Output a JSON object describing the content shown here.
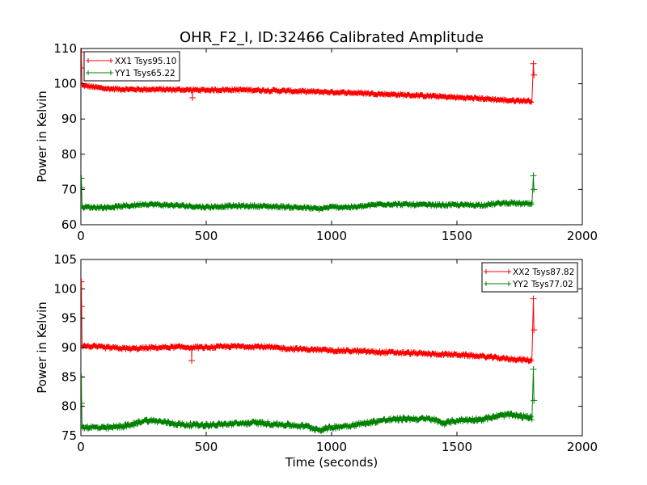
{
  "title": "OHR_F2_I, ID:32466 Calibrated Amplitude",
  "chart_data": [
    {
      "type": "line",
      "ylabel": "Power in Kelvin",
      "xlabel": "",
      "xlim": [
        0,
        2000
      ],
      "ylim": [
        60,
        110
      ],
      "xticks": [
        "0",
        "500",
        "1000",
        "1500",
        "2000"
      ],
      "yticks": [
        "60",
        "70",
        "80",
        "90",
        "100",
        "110"
      ],
      "grid": false,
      "legend_position": "upper-left",
      "series": [
        {
          "name": "XX1 Tsys95.10",
          "color": "#ff0000",
          "marker": "plus",
          "base": [
            [
              5,
              99.5
            ],
            [
              100,
              98.6
            ],
            [
              200,
              98.4
            ],
            [
              300,
              98.4
            ],
            [
              400,
              98.3
            ],
            [
              500,
              98.2
            ],
            [
              600,
              98.3
            ],
            [
              700,
              98.2
            ],
            [
              800,
              98.0
            ],
            [
              900,
              97.8
            ],
            [
              1000,
              97.6
            ],
            [
              1100,
              97.4
            ],
            [
              1200,
              97.1
            ],
            [
              1300,
              96.8
            ],
            [
              1400,
              96.5
            ],
            [
              1500,
              96.1
            ],
            [
              1600,
              95.8
            ],
            [
              1700,
              95.3
            ],
            [
              1800,
              95.1
            ]
          ],
          "noise": 0.35,
          "spikes": [
            [
              2,
              109.0
            ],
            [
              3,
              104.5
            ],
            [
              445,
              96.0
            ],
            [
              1805,
              105.7
            ],
            [
              1807,
              102.5
            ]
          ]
        },
        {
          "name": "YY1 Tsys65.22",
          "color": "#008000",
          "marker": "plus",
          "base": [
            [
              5,
              65.0
            ],
            [
              100,
              64.9
            ],
            [
              200,
              65.4
            ],
            [
              250,
              65.9
            ],
            [
              300,
              65.7
            ],
            [
              400,
              65.4
            ],
            [
              500,
              65.0
            ],
            [
              600,
              65.3
            ],
            [
              700,
              65.3
            ],
            [
              800,
              65.1
            ],
            [
              900,
              64.8
            ],
            [
              950,
              64.5
            ],
            [
              1000,
              65.0
            ],
            [
              1100,
              65.0
            ],
            [
              1200,
              65.9
            ],
            [
              1300,
              65.7
            ],
            [
              1400,
              65.6
            ],
            [
              1500,
              65.6
            ],
            [
              1600,
              65.6
            ],
            [
              1700,
              66.2
            ],
            [
              1800,
              65.8
            ]
          ],
          "noise": 0.4,
          "spikes": [
            [
              2,
              73.2
            ],
            [
              3,
              70.5
            ],
            [
              1805,
              73.9
            ],
            [
              1807,
              70.0
            ]
          ]
        }
      ]
    },
    {
      "type": "line",
      "ylabel": "Power in Kelvin",
      "xlabel": "Time (seconds)",
      "xlim": [
        0,
        2000
      ],
      "ylim": [
        75,
        105
      ],
      "xticks": [
        "0",
        "500",
        "1000",
        "1500",
        "2000"
      ],
      "yticks": [
        "75",
        "80",
        "85",
        "90",
        "95",
        "100",
        "105"
      ],
      "grid": false,
      "legend_position": "upper-right",
      "series": [
        {
          "name": "XX2 Tsys87.82",
          "color": "#ff0000",
          "marker": "plus",
          "base": [
            [
              5,
              90.3
            ],
            [
              100,
              90.0
            ],
            [
              200,
              89.8
            ],
            [
              300,
              90.0
            ],
            [
              400,
              90.1
            ],
            [
              500,
              90.0
            ],
            [
              600,
              90.2
            ],
            [
              700,
              90.2
            ],
            [
              800,
              89.9
            ],
            [
              900,
              89.7
            ],
            [
              1000,
              89.5
            ],
            [
              1100,
              89.4
            ],
            [
              1200,
              89.2
            ],
            [
              1300,
              89.1
            ],
            [
              1400,
              88.9
            ],
            [
              1500,
              88.8
            ],
            [
              1600,
              88.5
            ],
            [
              1700,
              88.1
            ],
            [
              1800,
              87.8
            ]
          ],
          "noise": 0.25,
          "spikes": [
            [
              2,
              101.2
            ],
            [
              3,
              97.0
            ],
            [
              442,
              87.8
            ],
            [
              1805,
              98.3
            ],
            [
              1807,
              93.0
            ]
          ]
        },
        {
          "name": "YY2 Tsys77.02",
          "color": "#008000",
          "marker": "plus",
          "base": [
            [
              5,
              76.5
            ],
            [
              100,
              76.3
            ],
            [
              200,
              76.8
            ],
            [
              250,
              77.6
            ],
            [
              300,
              77.5
            ],
            [
              400,
              76.9
            ],
            [
              500,
              76.8
            ],
            [
              600,
              77.0
            ],
            [
              700,
              77.2
            ],
            [
              800,
              76.9
            ],
            [
              900,
              76.6
            ],
            [
              950,
              76.0
            ],
            [
              1000,
              76.4
            ],
            [
              1100,
              76.9
            ],
            [
              1200,
              77.6
            ],
            [
              1300,
              77.9
            ],
            [
              1400,
              77.8
            ],
            [
              1450,
              77.1
            ],
            [
              1500,
              77.6
            ],
            [
              1600,
              77.8
            ],
            [
              1700,
              78.6
            ],
            [
              1800,
              78.0
            ]
          ],
          "noise": 0.35,
          "spikes": [
            [
              2,
              85.0
            ],
            [
              3,
              80.5
            ],
            [
              1805,
              86.3
            ],
            [
              1807,
              81.0
            ]
          ]
        }
      ]
    }
  ]
}
